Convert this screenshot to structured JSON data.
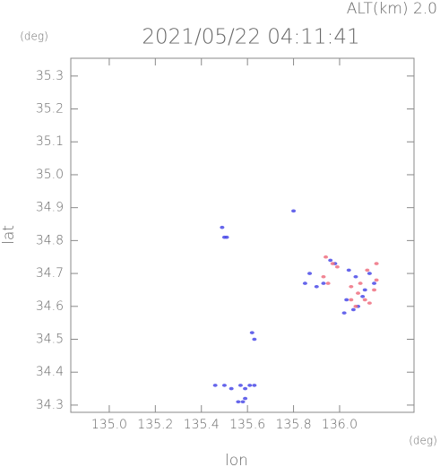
{
  "chart_data": {
    "type": "scatter",
    "title": "2021/05/22 04:11:41",
    "subtitle": "ALT(km) 2.0",
    "x_label": "lon",
    "y_label": "lat",
    "x_unit": "(deg)",
    "y_unit": "(deg)",
    "xlim": [
      134.833,
      136.323
    ],
    "ylim": [
      34.278,
      35.354
    ],
    "xticks": [
      {
        "value": 135,
        "label": "135.0"
      },
      135.2,
      135.4,
      135.6,
      135.8,
      {
        "value": 136,
        "label": "136.0"
      }
    ],
    "yticks": [
      34.3,
      34.4,
      34.5,
      34.6,
      34.7,
      34.8,
      34.9,
      {
        "value": 35,
        "label": "35.0"
      },
      35.1,
      35.2,
      35.3
    ],
    "series": [
      {
        "color": "#4a4ae8",
        "x": [
          135.49,
          135.5,
          135.51,
          135.8,
          135.63,
          135.62,
          135.46,
          135.5,
          135.53,
          135.57,
          135.59,
          135.61,
          135.63,
          135.56,
          135.58,
          135.59,
          135.85,
          135.87,
          135.9,
          135.93,
          135.96,
          135.98,
          136.04,
          136.07,
          136.03,
          136.06,
          136.08,
          136.11,
          136.13,
          136.15,
          136.02,
          136.1
        ],
        "y": [
          34.84,
          34.81,
          34.81,
          34.89,
          34.5,
          34.52,
          34.36,
          34.36,
          34.35,
          34.36,
          34.35,
          34.36,
          34.36,
          34.31,
          34.31,
          34.32,
          34.67,
          34.7,
          34.66,
          34.67,
          34.74,
          34.73,
          34.71,
          34.69,
          34.62,
          34.59,
          34.6,
          34.65,
          34.7,
          34.67,
          34.58,
          34.63
        ]
      },
      {
        "color": "#ee7080",
        "x": [
          135.94,
          135.97,
          135.99,
          135.93,
          135.95,
          136.05,
          136.08,
          136.11,
          136.13,
          136.15,
          136.16,
          136.05,
          136.07,
          136.16,
          136.12,
          136.09
        ],
        "y": [
          34.75,
          34.73,
          34.72,
          34.69,
          34.67,
          34.66,
          34.64,
          34.62,
          34.61,
          34.65,
          34.68,
          34.62,
          34.6,
          34.73,
          34.71,
          34.67
        ]
      }
    ]
  }
}
